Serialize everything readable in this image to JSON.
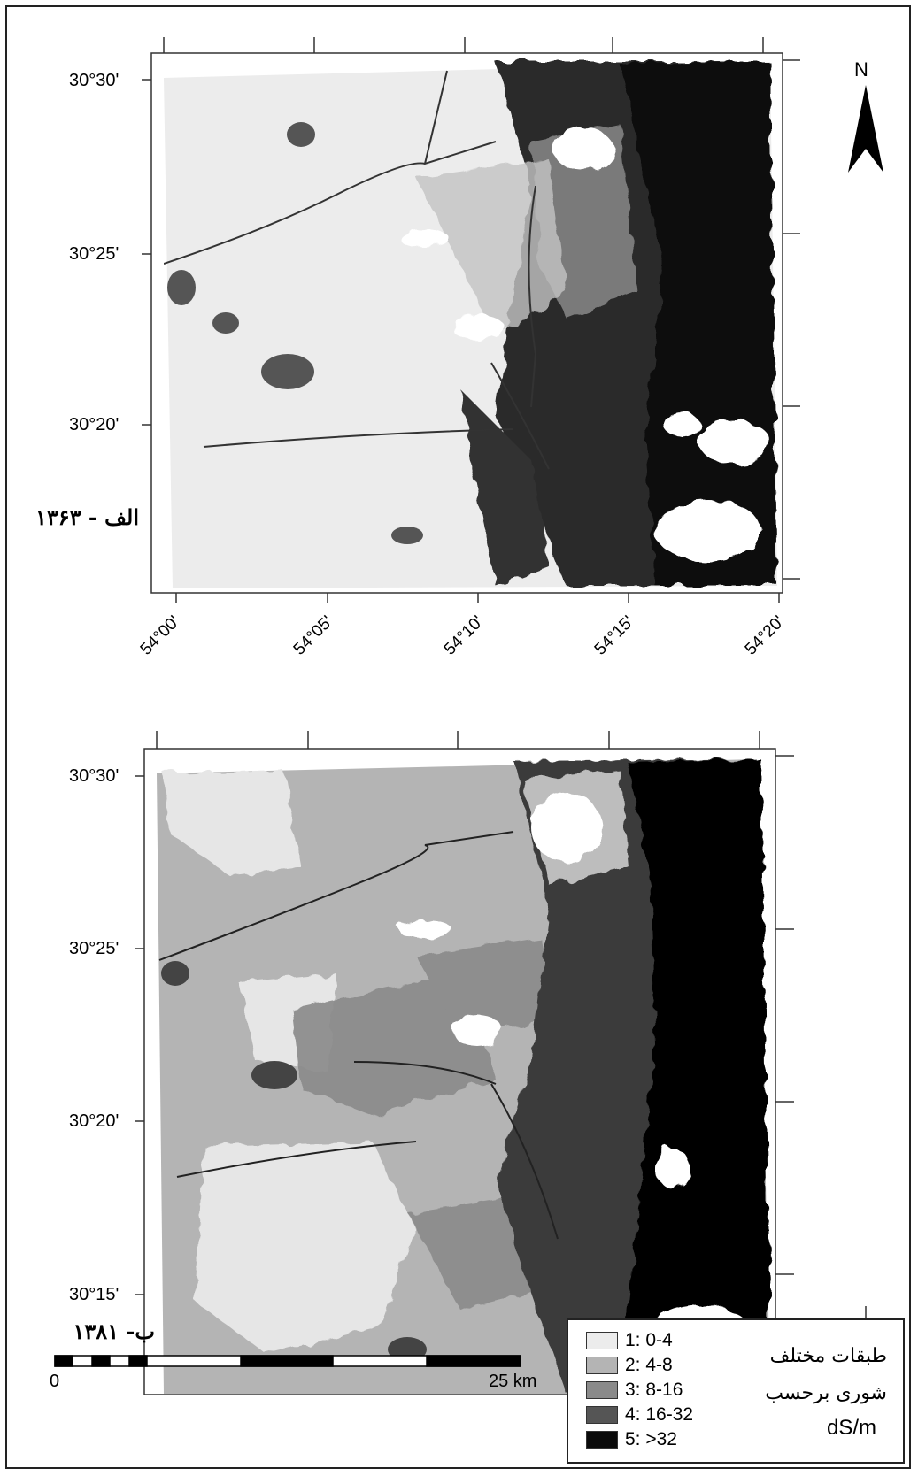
{
  "north_label": "N",
  "top_map": {
    "year_label": "الف - ۱۳۶۳",
    "lat_labels": [
      "30°30'",
      "30°25'",
      "30°20'"
    ],
    "lon_labels": [
      "54°00'",
      "54°05'",
      "54°10'",
      "54°15'",
      "54°20'"
    ]
  },
  "bottom_map": {
    "year_label": "ب- ۱۳۸۱",
    "lat_labels": [
      "30°30'",
      "30°25'",
      "30°20'",
      "30°15'"
    ]
  },
  "scale_bar": {
    "start_label": "0",
    "end_label": "25 km"
  },
  "legend": {
    "title_line1": "طبقات مختلف",
    "title_line2": "شوری برحسب",
    "units": "dS/m",
    "items": [
      {
        "label": "1: 0-4",
        "color": "#ececec"
      },
      {
        "label": "2: 4-8",
        "color": "#b4b4b4"
      },
      {
        "label": "3: 8-16",
        "color": "#8a8a8a"
      },
      {
        "label": "4: 16-32",
        "color": "#555555"
      },
      {
        "label": "5: >32",
        "color": "#0a0a0a"
      }
    ]
  }
}
